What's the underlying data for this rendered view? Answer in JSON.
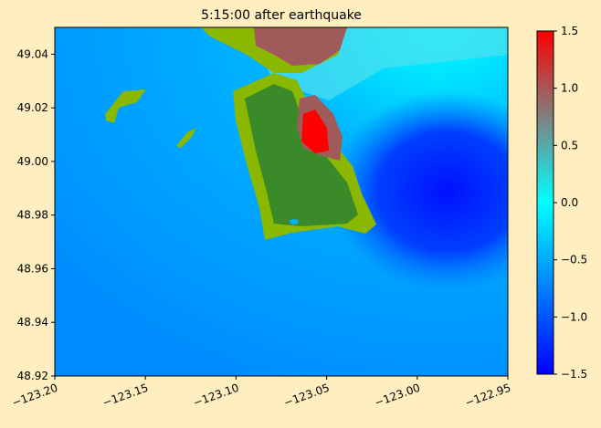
{
  "chart_data": {
    "type": "heatmap",
    "title": "5:15:00 after earthquake",
    "xlim": [
      -123.2,
      -122.95
    ],
    "ylim": [
      48.92,
      49.05
    ],
    "xticks": [
      {
        "value": -123.2,
        "label": "−123.20"
      },
      {
        "value": -123.15,
        "label": "−123.15"
      },
      {
        "value": -123.1,
        "label": "−123.10"
      },
      {
        "value": -123.05,
        "label": "−123.05"
      },
      {
        "value": -123.0,
        "label": "−123.00"
      },
      {
        "value": -122.95,
        "label": "−122.95"
      }
    ],
    "yticks": [
      48.92,
      48.94,
      48.96,
      48.98,
      {
        "value": 49.0,
        "label": "49.00"
      },
      49.02,
      49.04
    ],
    "colorbar": {
      "lim": [
        -1.5,
        1.5
      ],
      "ticks": [
        {
          "value": -1.5,
          "label": "−1.5"
        },
        {
          "value": -1.0,
          "label": "−1.0"
        },
        {
          "value": -0.5,
          "label": "−0.5"
        },
        {
          "value": 0.0,
          "label": "0.0"
        },
        0.5,
        {
          "value": 1.0,
          "label": "1.0"
        },
        1.5
      ]
    }
  }
}
